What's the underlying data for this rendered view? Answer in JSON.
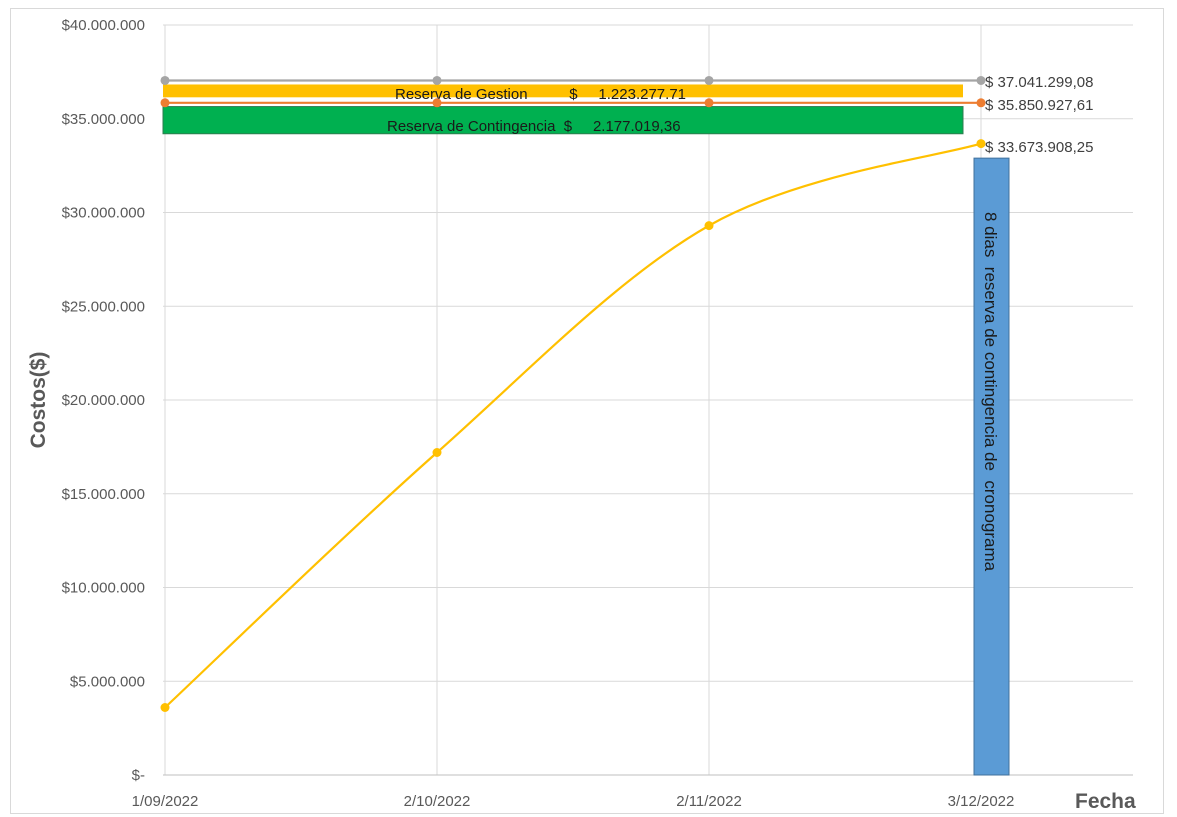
{
  "chart_data": {
    "type": "line",
    "xlabel": "Fecha",
    "ylabel": "Costos($)",
    "ylim": [
      0,
      40000000
    ],
    "y_ticks": [
      {
        "value": 0,
        "label": "$-"
      },
      {
        "value": 5000000,
        "label": "$5.000.000"
      },
      {
        "value": 10000000,
        "label": "$10.000.000"
      },
      {
        "value": 15000000,
        "label": "$15.000.000"
      },
      {
        "value": 20000000,
        "label": "$20.000.000"
      },
      {
        "value": 25000000,
        "label": "$25.000.000"
      },
      {
        "value": 30000000,
        "label": "$30.000.000"
      },
      {
        "value": 35000000,
        "label": "$35.000.000"
      },
      {
        "value": 40000000,
        "label": "$40.000.000"
      }
    ],
    "categories": [
      "1/09/2022",
      "2/10/2022",
      "2/11/2022",
      "3/12/2022"
    ],
    "grid": true,
    "series": [
      {
        "values": [
          37041299.08,
          37041299.08,
          37041299.08,
          37041299.08
        ],
        "color": "#a5a5a5",
        "smooth": false
      },
      {
        "values": [
          35850927.61,
          35850927.61,
          35850927.61,
          35850927.61
        ],
        "color": "#ed7d31",
        "smooth": false
      },
      {
        "values": [
          3600000,
          17200000,
          29300000,
          33673908.25
        ],
        "color": "#ffc000",
        "smooth": true
      }
    ],
    "end_labels": [
      {
        "value": 37041299.08,
        "text": "$ 37.041.299,08"
      },
      {
        "value": 35850927.61,
        "text": "$ 35.850.927,61"
      },
      {
        "value": 33673908.25,
        "text": "$ 33.673.908,25"
      }
    ],
    "annotations": {
      "gestion": {
        "text": "Reserva de Gestion          $     1.223.277.71",
        "color": "#ffc000",
        "from": 36250000,
        "to": 37041299.08
      },
      "contingencia": {
        "text": "Reserva de Contingencia  $     2.177.019,36",
        "color": "#00b050",
        "from": 34200000,
        "to": 35650000
      },
      "cronograma": {
        "text": "8 dias  reserva de contingencia de  cronograma",
        "color": "#5b9bd5",
        "from": 0,
        "to": 32900000
      }
    }
  }
}
